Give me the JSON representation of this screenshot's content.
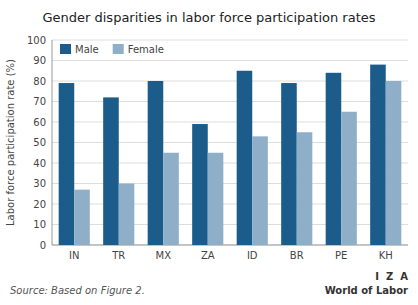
{
  "chart_data": {
    "type": "bar",
    "title": "Gender disparities in labor force participation rates",
    "categories": [
      "IN",
      "TR",
      "MX",
      "ZA",
      "ID",
      "BR",
      "PE",
      "KH"
    ],
    "series": [
      {
        "name": "Male",
        "color": "#1b5c8a",
        "values": [
          79,
          72,
          80,
          59,
          85,
          79,
          84,
          88
        ]
      },
      {
        "name": "Female",
        "color": "#8fafc8",
        "values": [
          27,
          30,
          45,
          45,
          53,
          55,
          65,
          80
        ]
      }
    ],
    "ylabel": "Labor force participation rate (%)",
    "ylim": [
      0,
      100
    ],
    "yticks": [
      0,
      10,
      20,
      30,
      40,
      50,
      60,
      70,
      80,
      90,
      100
    ],
    "grid": true,
    "legend": "upper left",
    "source": "Source: Based on Figure 2.",
    "annotations": [
      "I  Z  A",
      "World of Labor"
    ]
  }
}
